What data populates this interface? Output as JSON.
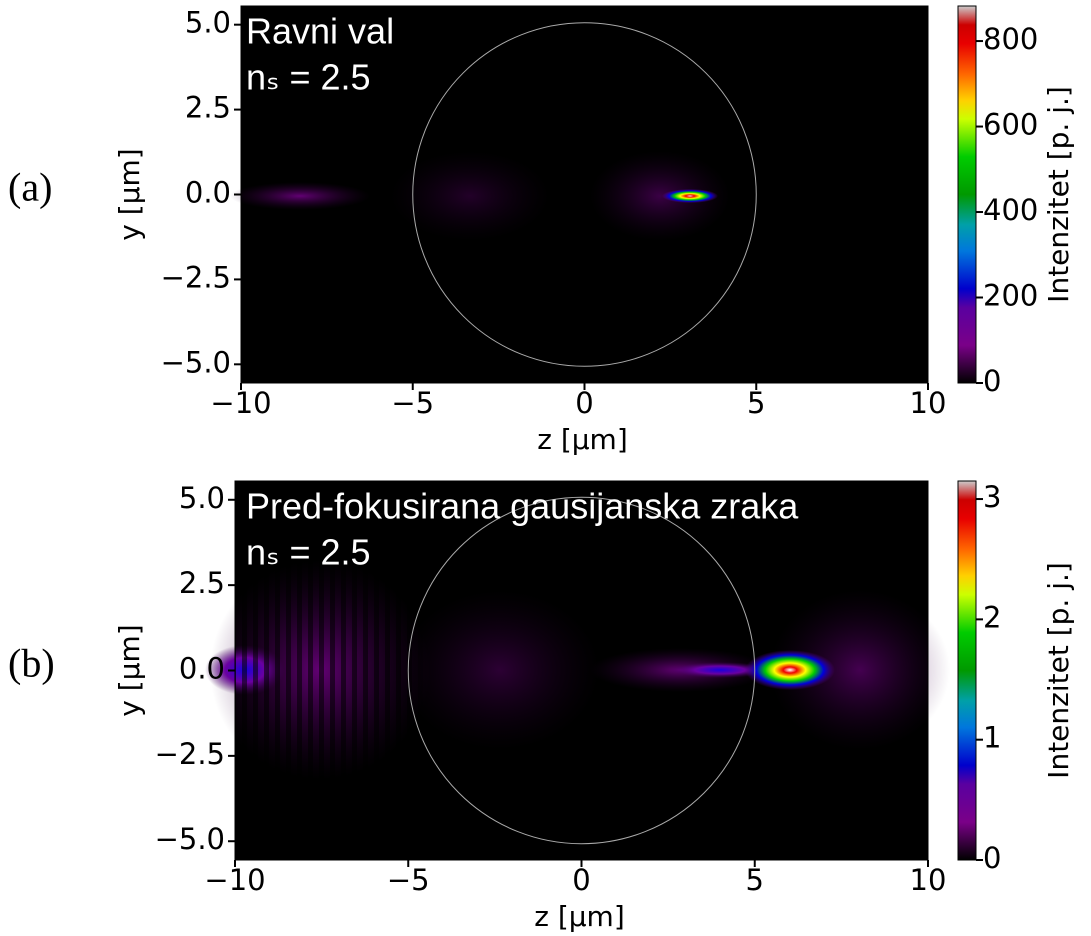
{
  "chart_data": [
    {
      "type": "heatmap",
      "panel_label": "(a)",
      "annotation": [
        "Ravni val",
        "nₛ = 2.5"
      ],
      "xlabel": "z [µm]",
      "ylabel": "y [µm]",
      "xlim": [
        -10,
        10
      ],
      "ylim": [
        -5.55,
        5.55
      ],
      "xticks": [
        {
          "value": -10,
          "label": "−10"
        },
        {
          "value": -5,
          "label": "−5"
        },
        0,
        5,
        10
      ],
      "yticks": [
        {
          "value": -5,
          "label": "−5.0"
        },
        {
          "value": -2.5,
          "label": "−2.5"
        },
        {
          "value": 0,
          "label": "0.0"
        },
        2.5,
        {
          "value": 5,
          "label": "5.0"
        }
      ],
      "colorbar_label": "Intenzitet [p. j.]",
      "clim": [
        0,
        882
      ],
      "cticks": [
        0,
        200,
        400,
        600,
        800
      ]
    },
    {
      "type": "heatmap",
      "panel_label": "(b)",
      "annotation": [
        "Pred-fokusirana gausijanska zraka",
        "nₛ = 2.5"
      ],
      "xlabel": "z [µm]",
      "ylabel": "y [µm]",
      "xlim": [
        -10,
        10
      ],
      "ylim": [
        -5.55,
        5.55
      ],
      "xticks": [
        {
          "value": -10,
          "label": "−10"
        },
        {
          "value": -5,
          "label": "−5"
        },
        0,
        5,
        10
      ],
      "yticks": [
        {
          "value": -5,
          "label": "−5.0"
        },
        {
          "value": -2.5,
          "label": "−2.5"
        },
        {
          "value": 0,
          "label": "0.0"
        },
        2.5,
        {
          "value": 5,
          "label": "5.0"
        }
      ],
      "colorbar_label": "Intenzitet [p. j.]",
      "clim": [
        0,
        3.15
      ],
      "cticks": [
        0,
        1,
        2,
        3
      ]
    }
  ]
}
